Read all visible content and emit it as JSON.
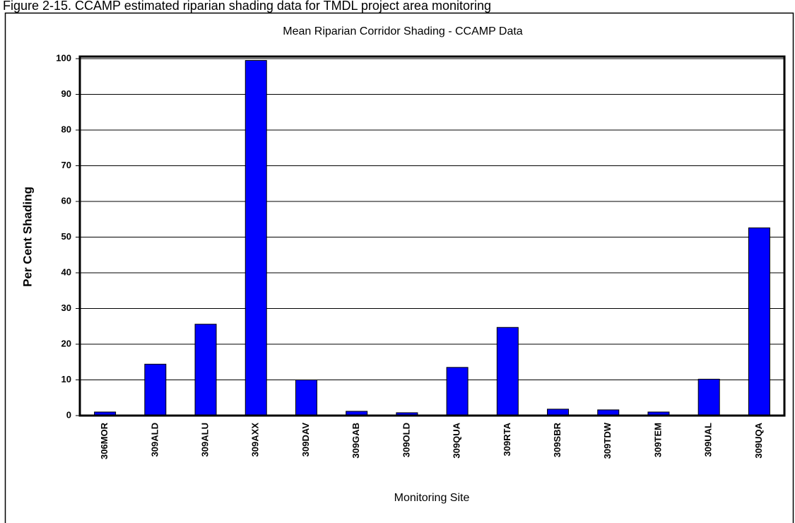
{
  "caption": "Figure 2-15. CCAMP  estimated riparian shading data for TMDL project area monitoring",
  "chart_data": {
    "type": "bar",
    "title": "Mean Riparian Corridor Shading - CCAMP Data",
    "x_label": "Monitoring Site",
    "y_label": "Per Cent Shading",
    "categories": [
      "306MOR",
      "309ALD",
      "309ALU",
      "309AXX",
      "309DAV",
      "309GAB",
      "309OLD",
      "309QUA",
      "309RTA",
      "309SBR",
      "309TDW",
      "309TEM",
      "309UAL",
      "309UQA"
    ],
    "values": [
      1,
      14.4,
      25.6,
      99.5,
      10,
      1.2,
      0.8,
      13.5,
      24.7,
      1.8,
      1.6,
      1,
      10.2,
      52.6
    ],
    "color": "#0000ff",
    "ylim": [
      0,
      100
    ],
    "yticks": [
      0,
      10,
      20,
      30,
      40,
      50,
      60,
      70,
      80,
      90,
      100
    ],
    "grid": true
  }
}
